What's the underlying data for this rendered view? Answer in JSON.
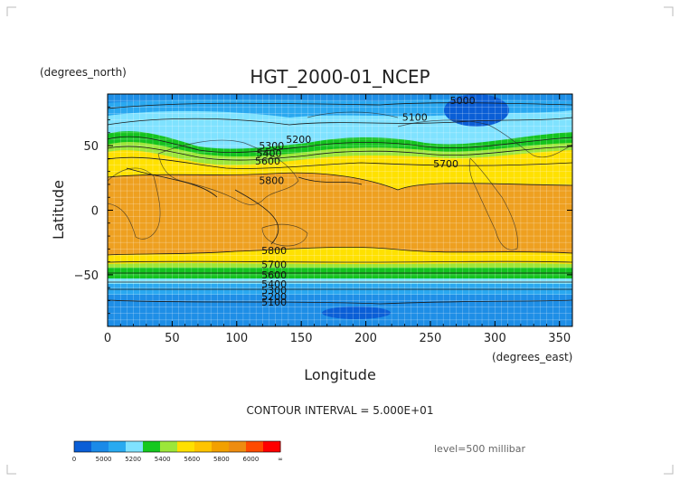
{
  "chart_data": {
    "type": "heatmap",
    "title": "HGT_2000-01_NCEP",
    "xlabel": "Longitude",
    "ylabel": "Latitude",
    "x_units": "(degrees_east)",
    "y_units": "(degrees_north)",
    "xlim": [
      0,
      360
    ],
    "ylim": [
      -90,
      90
    ],
    "x_ticks": [
      "0",
      "50",
      "100",
      "150",
      "200",
      "250",
      "300",
      "350"
    ],
    "y_ticks": [
      "50",
      "0",
      "−50"
    ],
    "grid": true,
    "contour_interval_label": "CONTOUR INTERVAL = 5.000E+01",
    "level_label": "level=500 millibar",
    "contour_labels": [
      {
        "text": "5000",
        "lon": 275,
        "lat": 85
      },
      {
        "text": "5100",
        "lon": 238,
        "lat": 72
      },
      {
        "text": "5200",
        "lon": 148,
        "lat": 55
      },
      {
        "text": "5300",
        "lon": 127,
        "lat": 50
      },
      {
        "text": "5400",
        "lon": 125,
        "lat": 44
      },
      {
        "text": "5600",
        "lon": 124,
        "lat": 38
      },
      {
        "text": "5700",
        "lon": 262,
        "lat": 36
      },
      {
        "text": "5800",
        "lon": 127,
        "lat": 23
      },
      {
        "text": "5800",
        "lon": 129,
        "lat": -31
      },
      {
        "text": "5700",
        "lon": 129,
        "lat": -42
      },
      {
        "text": "5600",
        "lon": 129,
        "lat": -50
      },
      {
        "text": "5400",
        "lon": 129,
        "lat": -57
      },
      {
        "text": "5300",
        "lon": 129,
        "lat": -62
      },
      {
        "text": "5200",
        "lon": 129,
        "lat": -67
      },
      {
        "text": "5100",
        "lon": 129,
        "lat": -71
      }
    ],
    "legend": {
      "labels": [
        "0",
        "5000",
        "5200",
        "5400",
        "5600",
        "5800",
        "6000",
        "∞"
      ],
      "colors": [
        "#0a5ed6",
        "#1a8ae8",
        "#29aaf0",
        "#7fe2ff",
        "#15c81f",
        "#9ce63a",
        "#ffe000",
        "#ffc400",
        "#f2a000",
        "#ee8c10",
        "#ff4a00",
        "#ff0000"
      ]
    }
  }
}
